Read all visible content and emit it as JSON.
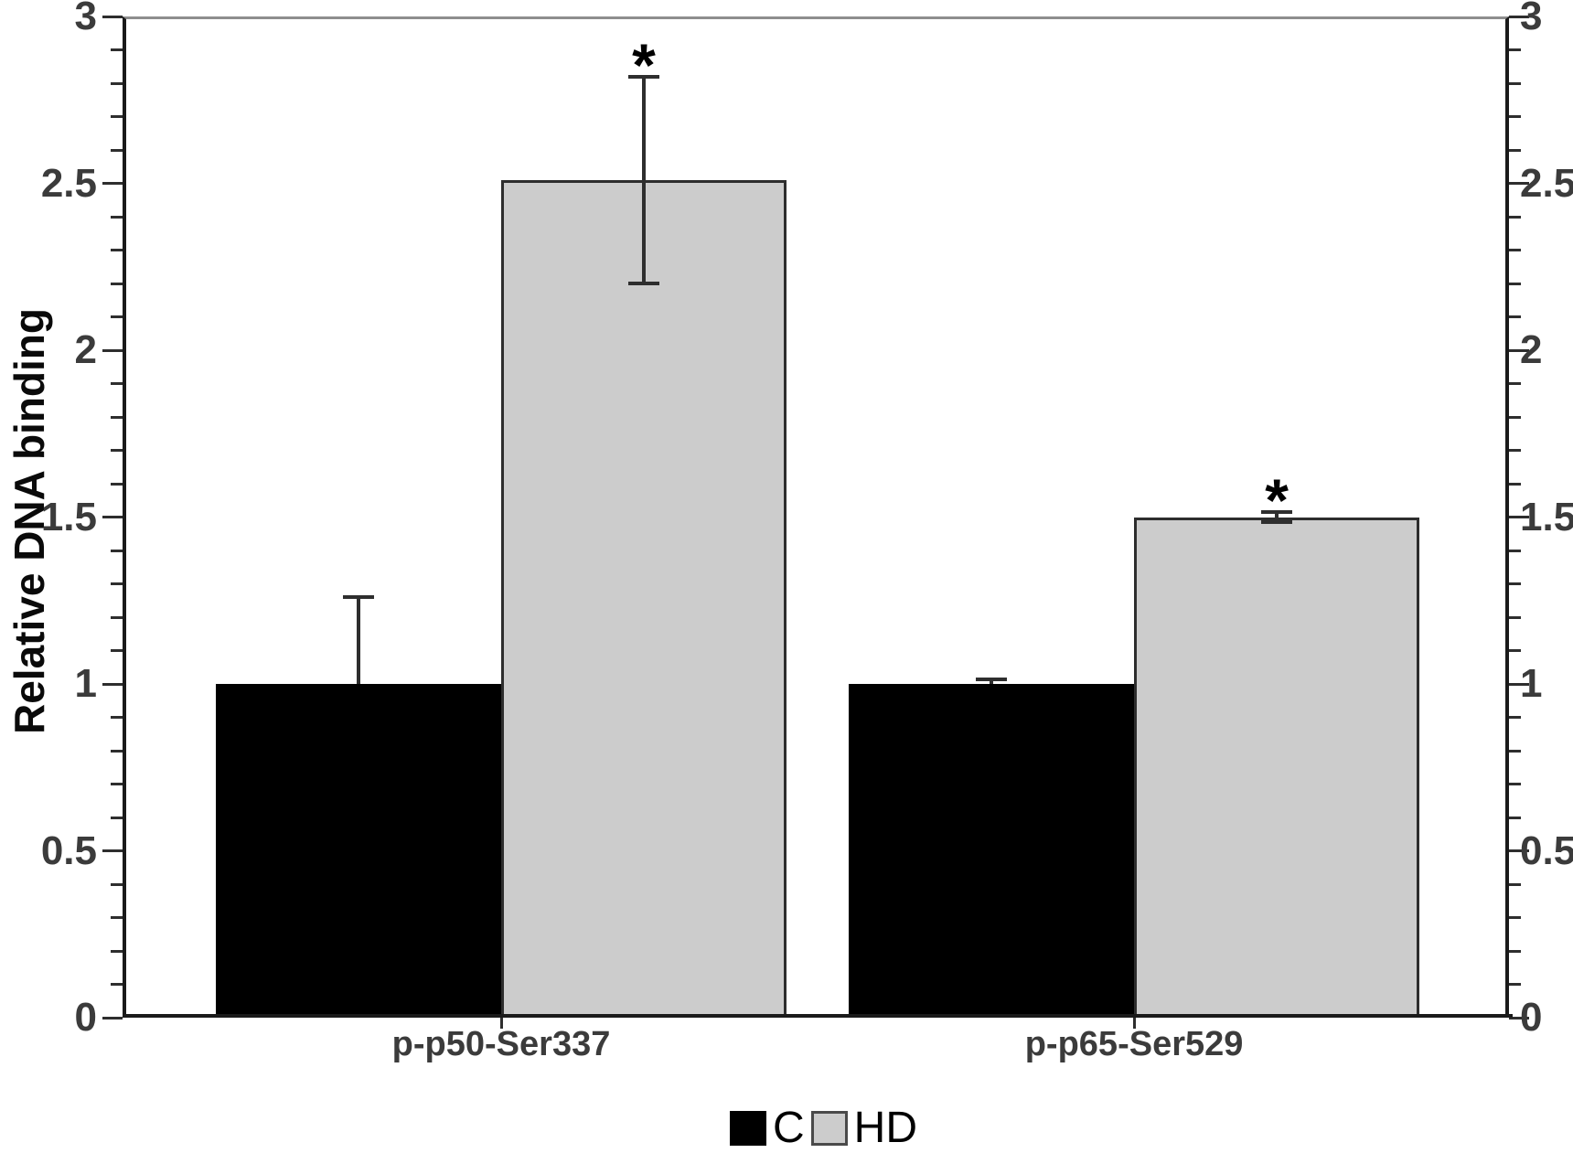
{
  "chart_data": {
    "type": "bar",
    "title": "",
    "xlabel": "",
    "ylabel": "Relative DNA binding",
    "categories": [
      "p-p50-Ser337",
      "p-p65-Ser529"
    ],
    "series": [
      {
        "name": "C",
        "color": "#000000",
        "border_color": "#000000",
        "values": [
          1.0,
          1.0
        ],
        "error_plus": [
          0.26,
          0.015
        ],
        "error_minus": [
          0,
          0
        ],
        "significance": [
          null,
          null
        ]
      },
      {
        "name": "HD",
        "color": "#cccccc",
        "border_color": "#2d2d2d",
        "values": [
          2.51,
          1.5
        ],
        "error_plus": [
          0.31,
          0.015
        ],
        "error_minus": [
          0.31,
          0.015
        ],
        "significance": [
          "*",
          "*"
        ]
      }
    ],
    "ylim": [
      0,
      3
    ],
    "yticks": [
      0,
      0.5,
      1,
      1.5,
      2,
      2.5,
      3
    ],
    "ytick_labels": [
      "0",
      "0.5",
      "1",
      "1.5",
      "2",
      "2.5",
      "3"
    ],
    "minor_tick_step": 0.1,
    "ytick_labels_on_both_sides": true,
    "grid": false,
    "legend_position": "bottom",
    "colors": {
      "axis": "#1a1a1a",
      "top_frame": "#8e8e8e",
      "tick": "#2e2e2e",
      "tick_label_text": "#3b3b3b",
      "category_label_text": "#3b3b3b",
      "error_bar": "#2e2e2e",
      "background": "#ffffff"
    }
  }
}
